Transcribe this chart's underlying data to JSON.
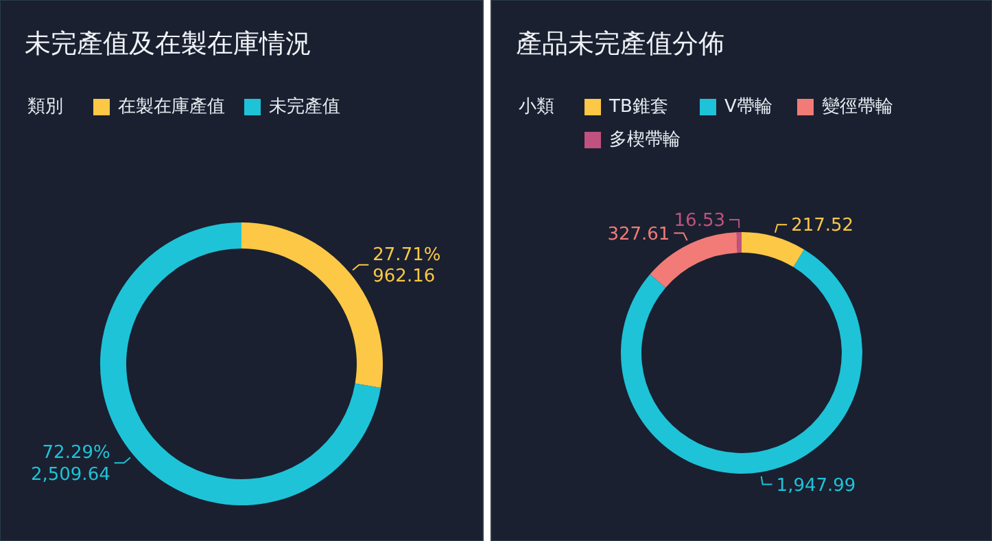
{
  "chart_data": [
    {
      "type": "donut",
      "title": "未完產值及在製在庫情況",
      "legend_title": "類別",
      "legend": "top left",
      "categories": [
        "在製在庫產值",
        "未完產值"
      ],
      "values": [
        962.16,
        2509.64
      ],
      "colors": [
        "#fcc845",
        "#1ec3d8"
      ],
      "value_labels": [
        "27.71%\n962.16",
        "72.29%\n2,509.64"
      ]
    },
    {
      "type": "donut",
      "title": "產品未完產值分佈",
      "legend_title": "小類",
      "legend": "top left",
      "categories": [
        "TB錐套",
        "V帶輪",
        "變徑帶輪",
        "多楔帶輪"
      ],
      "values": [
        217.52,
        1947.99,
        327.61,
        16.53
      ],
      "colors": [
        "#fcc845",
        "#1ec3d8",
        "#f27b77",
        "#c0527f"
      ],
      "value_labels": [
        "217.52",
        "1,947.99",
        "327.61",
        "16.53"
      ]
    }
  ]
}
